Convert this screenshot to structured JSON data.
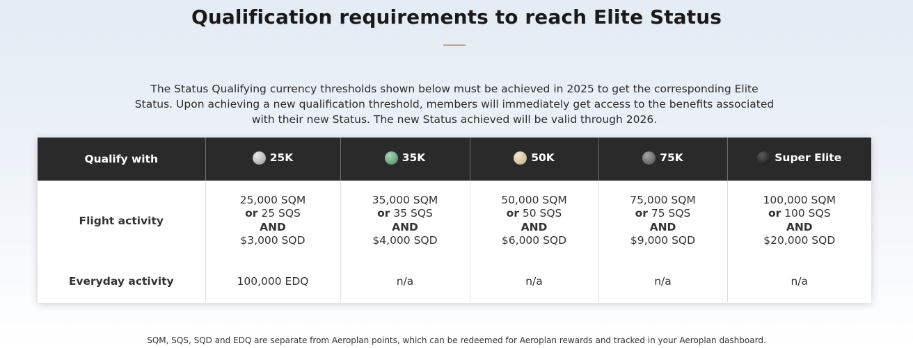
{
  "page": {
    "title": "Qualification requirements to reach Elite Status",
    "intro": "The Status Qualifying currency thresholds shown below must be achieved in 2025 to get the corresponding Elite Status. Upon achieving a new qualification threshold, members will immediately get access to the benefits associated with their new Status. The new Status achieved will be valid through 2026.",
    "footnote": "SQM, SQS, SQD and EDQ are separate from Aeroplan points, which can be redeemed for Aeroplan rewards and tracked in your Aeroplan dashboard."
  },
  "table": {
    "corner_label": "Qualify with",
    "tiers": [
      {
        "label": "25K",
        "icon": "silver-dot-icon",
        "color": "#b4b4b4"
      },
      {
        "label": "35K",
        "icon": "green-dot-icon",
        "color": "#6fa783"
      },
      {
        "label": "50K",
        "icon": "beige-dot-icon",
        "color": "#d9cbab"
      },
      {
        "label": "75K",
        "icon": "gray-dot-icon",
        "color": "#747474"
      },
      {
        "label": "Super Elite",
        "icon": "black-dot-icon",
        "color": "#222222"
      }
    ],
    "flight_label": "Flight activity",
    "or_word": "or",
    "and_word": "AND",
    "flight": [
      {
        "sqm": "25,000 SQM",
        "sqs": " 25 SQS",
        "sqd": "$3,000 SQD"
      },
      {
        "sqm": "35,000 SQM",
        "sqs": " 35 SQS",
        "sqd": "$4,000 SQD"
      },
      {
        "sqm": "50,000 SQM",
        "sqs": " 50 SQS",
        "sqd": "$6,000 SQD"
      },
      {
        "sqm": "75,000 SQM",
        "sqs": " 75 SQS",
        "sqd": "$9,000 SQD"
      },
      {
        "sqm": "100,000 SQM",
        "sqs": " 100 SQS",
        "sqd": "$20,000 SQD"
      }
    ],
    "everyday_label": "Everyday activity",
    "everyday": [
      "100,000 EDQ",
      "n/a",
      "n/a",
      "n/a",
      "n/a"
    ]
  }
}
